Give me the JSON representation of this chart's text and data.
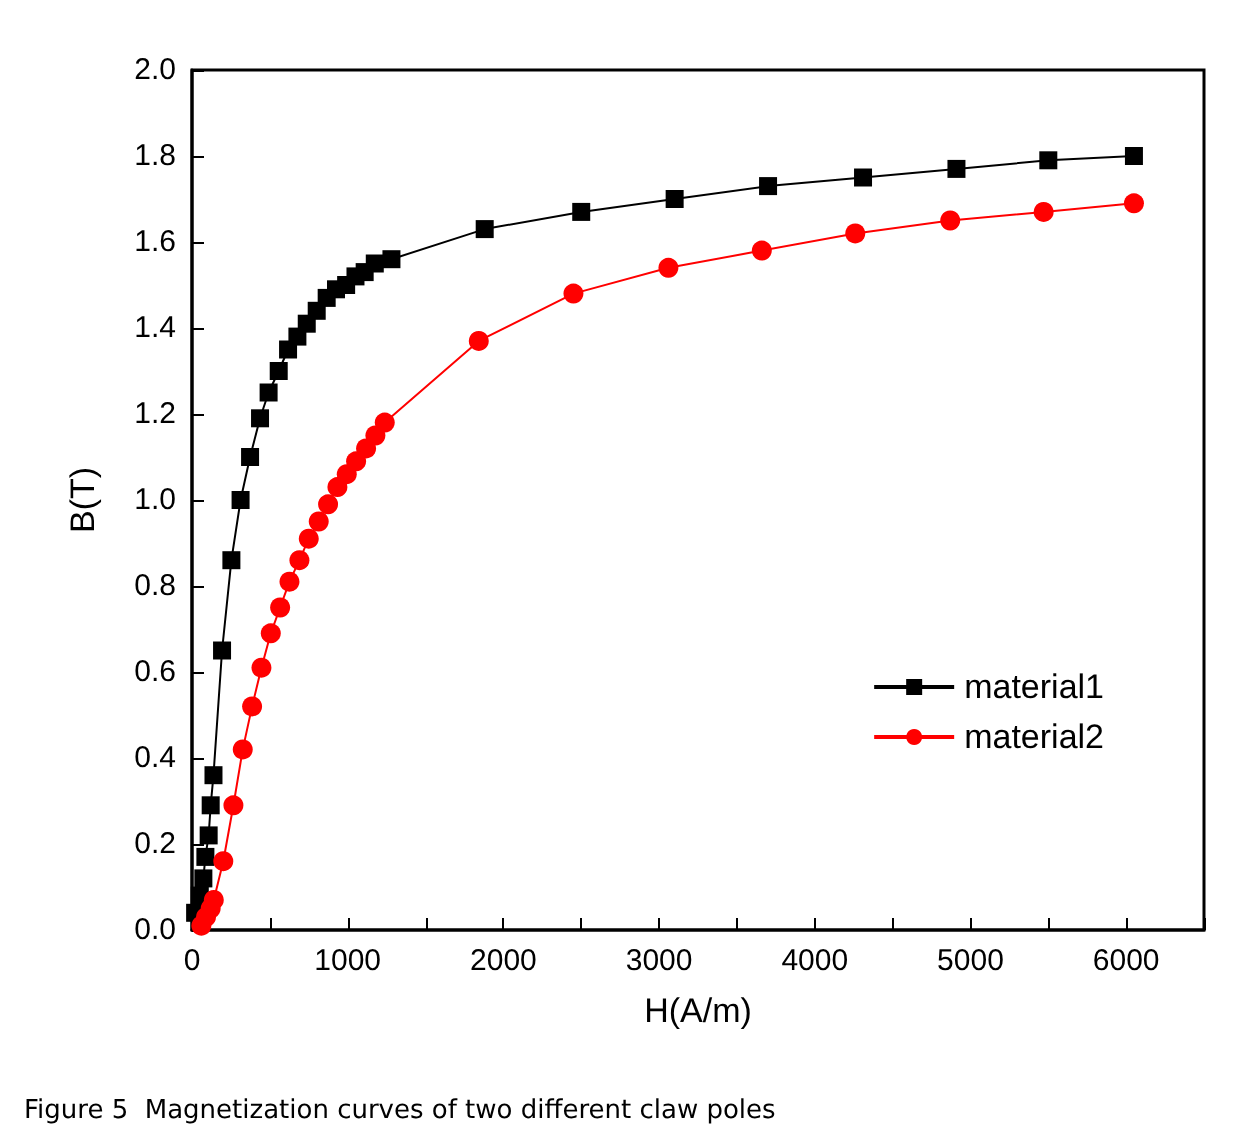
{
  "chart_data": {
    "type": "line",
    "xlabel": "H(A/m)",
    "ylabel": "B(T)",
    "annotations": [
      "Figure 5  Magnetization curves of two different claw poles"
    ],
    "xlim": [
      0,
      6500
    ],
    "xticks": [
      0,
      {
        "value": 500,
        "label": null
      },
      1000,
      {
        "value": 1500,
        "label": null
      },
      2000,
      {
        "value": 2500,
        "label": null
      },
      3000,
      {
        "value": 3500,
        "label": null
      },
      4000,
      {
        "value": 4500,
        "label": null
      },
      5000,
      {
        "value": 5500,
        "label": null
      },
      6000,
      {
        "value": 6500,
        "label": null
      }
    ],
    "ylim": [
      0,
      2
    ],
    "yticks": [
      {
        "value": 0,
        "label": "0.0"
      },
      {
        "value": 0.2,
        "label": "0.2"
      },
      {
        "value": 0.4,
        "label": "0.4"
      },
      {
        "value": 0.6,
        "label": "0.6"
      },
      {
        "value": 0.8,
        "label": "0.8"
      },
      {
        "value": 1,
        "label": "1.0"
      },
      {
        "value": 1.2,
        "label": "1.2"
      },
      {
        "value": 1.4,
        "label": "1.4"
      },
      {
        "value": 1.6,
        "label": "1.6"
      },
      {
        "value": 1.8,
        "label": "1.8"
      },
      {
        "value": 2,
        "label": "2.0"
      }
    ],
    "grid": false,
    "legend": "right",
    "line_style": "solid",
    "series": [
      {
        "name": "material1",
        "color": "#000000",
        "marker": "square",
        "x": [
          20,
          50,
          73,
          86,
          107,
          120,
          138,
          193,
          253,
          312,
          373,
          437,
          492,
          557,
          617,
          677,
          737,
          801,
          865,
          925,
          990,
          1050,
          1109,
          1174,
          1281,
          1880,
          2500,
          3100,
          3700,
          4310,
          4910,
          5500,
          6050
        ],
        "values": [
          0.04,
          0.08,
          0.12,
          0.17,
          0.22,
          0.29,
          0.36,
          0.65,
          0.86,
          1.0,
          1.1,
          1.19,
          1.25,
          1.3,
          1.35,
          1.38,
          1.41,
          1.44,
          1.47,
          1.49,
          1.5,
          1.52,
          1.53,
          1.55,
          1.56,
          1.63,
          1.67,
          1.7,
          1.73,
          1.75,
          1.77,
          1.79,
          1.8
        ]
      },
      {
        "name": "material2",
        "color": "#ff0000",
        "marker": "circle",
        "x": [
          60,
          90,
          120,
          140,
          201,
          266,
          326,
          386,
          446,
          506,
          566,
          626,
          690,
          750,
          814,
          874,
          934,
          994,
          1054,
          1118,
          1178,
          1238,
          1842,
          2450,
          3060,
          3660,
          4260,
          4870,
          5470,
          6050
        ],
        "values": [
          0.01,
          0.03,
          0.05,
          0.07,
          0.16,
          0.29,
          0.42,
          0.52,
          0.61,
          0.69,
          0.75,
          0.81,
          0.86,
          0.91,
          0.95,
          0.99,
          1.03,
          1.06,
          1.09,
          1.12,
          1.15,
          1.18,
          1.37,
          1.48,
          1.54,
          1.58,
          1.62,
          1.65,
          1.67,
          1.69
        ]
      }
    ]
  }
}
